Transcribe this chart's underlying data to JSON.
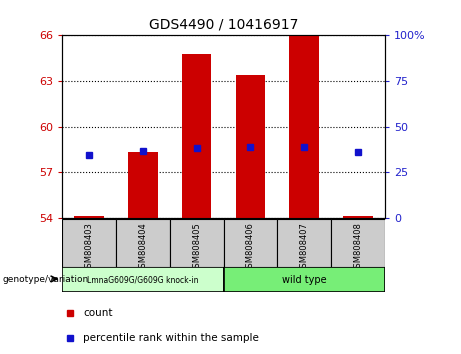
{
  "title": "GDS4490 / 10416917",
  "samples": [
    "GSM808403",
    "GSM808404",
    "GSM808405",
    "GSM808406",
    "GSM808407",
    "GSM808408"
  ],
  "bar_bottoms": [
    54.0,
    54.0,
    54.0,
    54.0,
    54.0,
    54.0
  ],
  "bar_tops": [
    54.08,
    58.3,
    64.8,
    63.4,
    66.0,
    54.08
  ],
  "percentile_values": [
    58.1,
    58.4,
    58.6,
    58.65,
    58.65,
    58.3
  ],
  "ylim_left": [
    54,
    66
  ],
  "yticks_left": [
    54,
    57,
    60,
    63,
    66
  ],
  "ylim_right": [
    0,
    100
  ],
  "yticks_right": [
    0,
    25,
    50,
    75,
    100
  ],
  "ytick_labels_right": [
    "0",
    "25",
    "50",
    "75",
    "100%"
  ],
  "bar_color": "#cc0000",
  "percentile_color": "#1111cc",
  "left_tick_color": "#cc0000",
  "right_tick_color": "#2222cc",
  "group1_label": "LmnaG609G/G609G knock-in",
  "group2_label": "wild type",
  "group1_indices": [
    0,
    1,
    2
  ],
  "group2_indices": [
    3,
    4,
    5
  ],
  "group1_color": "#ccffcc",
  "group2_color": "#77ee77",
  "genotype_label": "genotype/variation",
  "legend_count_label": "count",
  "legend_percentile_label": "percentile rank within the sample",
  "bg_color": "#cccccc",
  "bar_width": 0.55
}
